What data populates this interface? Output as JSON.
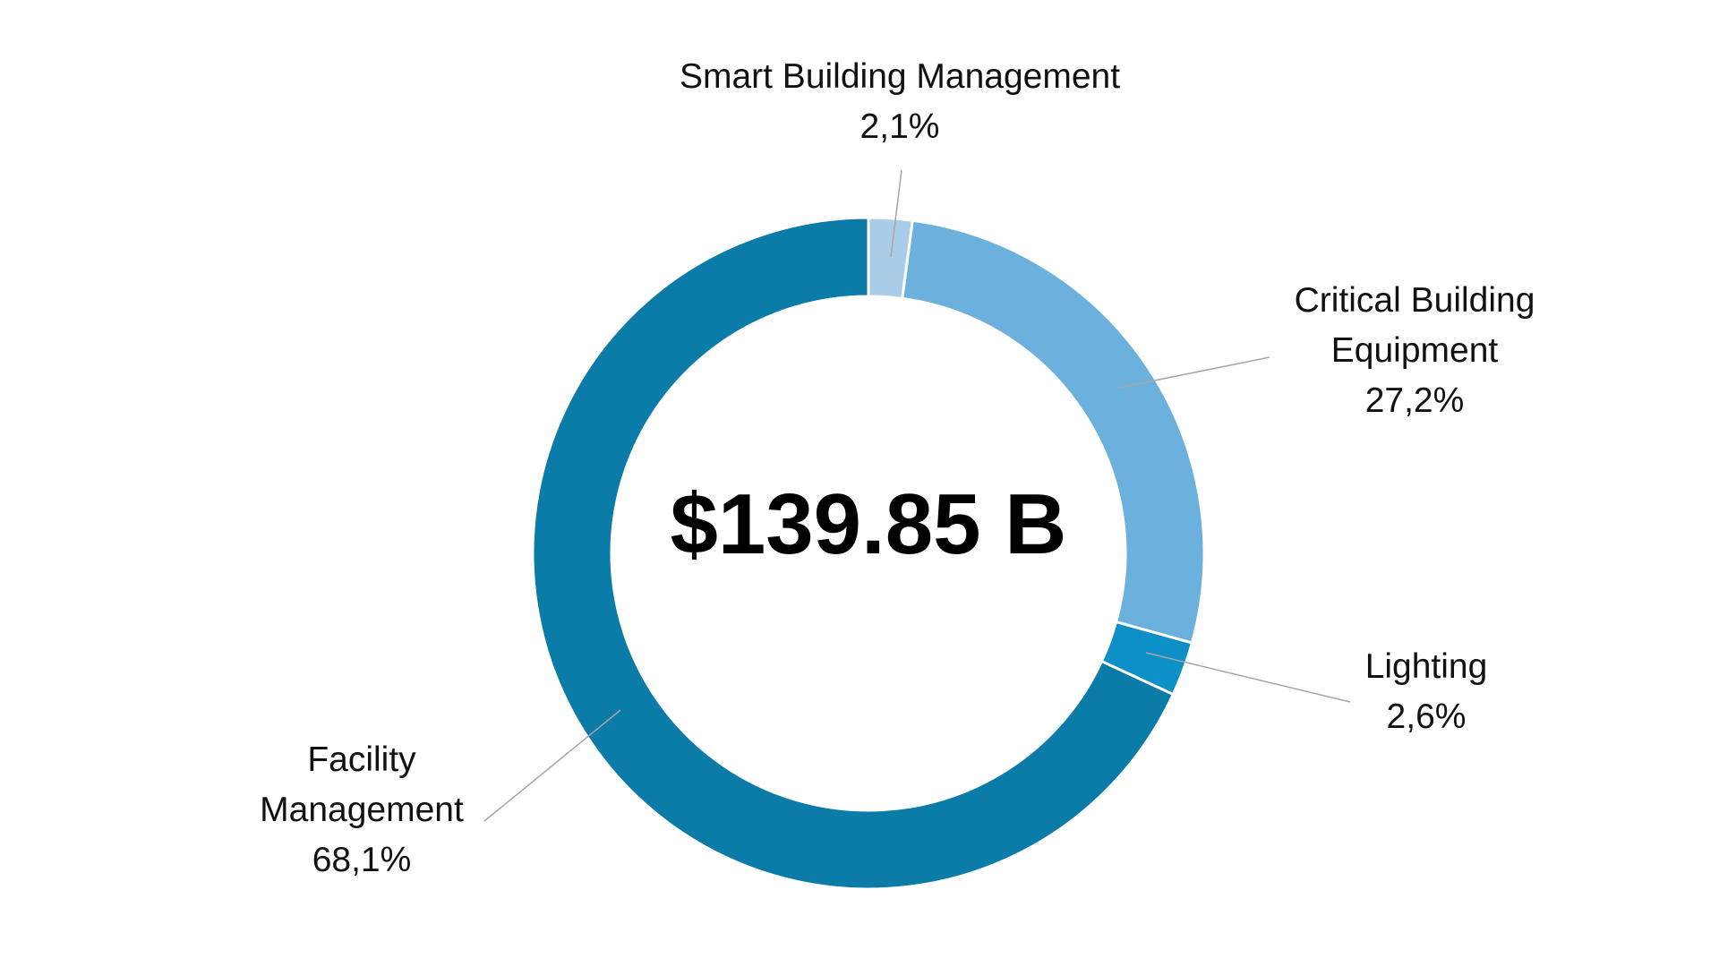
{
  "chart_data": {
    "type": "pie",
    "subtype": "donut",
    "center_label": "$139.85 B",
    "slices": [
      {
        "name": "Smart Building Management",
        "label_lines": [
          "Smart Building Management"
        ],
        "value": 2.1,
        "value_label": "2,1%",
        "color": "#a9cde8"
      },
      {
        "name": "Critical Building Equipment",
        "label_lines": [
          "Critical Building",
          "Equipment"
        ],
        "value": 27.2,
        "value_label": "27,2%",
        "color": "#6cb1dd"
      },
      {
        "name": "Lighting",
        "label_lines": [
          "Lighting"
        ],
        "value": 2.6,
        "value_label": "2,6%",
        "color": "#0c90c6"
      },
      {
        "name": "Facility Management",
        "label_lines": [
          "Facility",
          "Management"
        ],
        "value": 68.1,
        "value_label": "68,1%",
        "color": "#0b7ba8"
      }
    ]
  }
}
